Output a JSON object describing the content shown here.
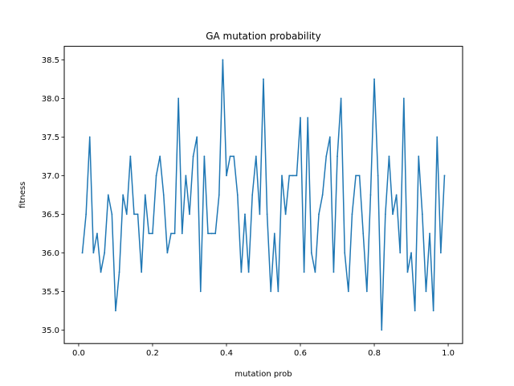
{
  "chart_data": {
    "type": "line",
    "title": "GA mutation probability",
    "xlabel": "mutation prob",
    "ylabel": "fitness",
    "xlim": [
      -0.039,
      1.039
    ],
    "ylim": [
      34.825,
      38.675
    ],
    "x_ticks": [
      0.0,
      0.2,
      0.4,
      0.6,
      0.8,
      1.0
    ],
    "x_tick_labels": [
      "0.0",
      "0.2",
      "0.4",
      "0.6",
      "0.8",
      "1.0"
    ],
    "y_ticks": [
      35.0,
      35.5,
      36.0,
      36.5,
      37.0,
      37.5,
      38.0,
      38.5
    ],
    "y_tick_labels": [
      "35.0",
      "35.5",
      "36.0",
      "36.5",
      "37.0",
      "37.5",
      "38.0",
      "38.5"
    ],
    "grid": false,
    "series": [
      {
        "color": "#1f77b4",
        "x": [
          0.01,
          0.02,
          0.03,
          0.04,
          0.05,
          0.06,
          0.07,
          0.08,
          0.09,
          0.1,
          0.11,
          0.12,
          0.13,
          0.14,
          0.15,
          0.16,
          0.17,
          0.18,
          0.19,
          0.2,
          0.21,
          0.22,
          0.23,
          0.24,
          0.25,
          0.26,
          0.27,
          0.28,
          0.29,
          0.3,
          0.31,
          0.32,
          0.33,
          0.34,
          0.35,
          0.36,
          0.37,
          0.38,
          0.39,
          0.4,
          0.41,
          0.42,
          0.43,
          0.44,
          0.45,
          0.46,
          0.47,
          0.48,
          0.49,
          0.5,
          0.51,
          0.52,
          0.53,
          0.54,
          0.55,
          0.56,
          0.57,
          0.58,
          0.59,
          0.6,
          0.61,
          0.62,
          0.63,
          0.64,
          0.65,
          0.66,
          0.67,
          0.68,
          0.69,
          0.7,
          0.71,
          0.72,
          0.73,
          0.74,
          0.75,
          0.76,
          0.77,
          0.78,
          0.79,
          0.8,
          0.81,
          0.82,
          0.83,
          0.84,
          0.85,
          0.86,
          0.87,
          0.88,
          0.89,
          0.9,
          0.91,
          0.92,
          0.93,
          0.94,
          0.95,
          0.96,
          0.97,
          0.98,
          0.99
        ],
        "y": [
          36.0,
          36.5,
          37.5,
          36.0,
          36.25,
          35.75,
          36.0,
          36.75,
          36.5,
          35.25,
          35.75,
          36.75,
          36.5,
          37.25,
          36.5,
          36.5,
          35.75,
          36.75,
          36.25,
          36.25,
          37.0,
          37.25,
          36.75,
          36.0,
          36.25,
          36.25,
          38.0,
          36.25,
          37.0,
          36.5,
          37.25,
          37.5,
          35.5,
          37.25,
          36.25,
          36.25,
          36.25,
          36.75,
          38.5,
          37.0,
          37.25,
          37.25,
          36.75,
          35.75,
          36.5,
          35.75,
          36.75,
          37.25,
          36.5,
          38.25,
          36.5,
          35.5,
          36.25,
          35.5,
          37.0,
          36.5,
          37.0,
          37.0,
          37.0,
          37.75,
          35.75,
          37.75,
          36.0,
          35.75,
          36.5,
          36.75,
          37.25,
          37.5,
          35.75,
          37.25,
          38.0,
          36.0,
          35.5,
          36.5,
          37.0,
          37.0,
          36.25,
          35.5,
          36.75,
          38.25,
          37.0,
          35.0,
          36.5,
          37.25,
          36.5,
          36.75,
          36.0,
          38.0,
          35.75,
          36.0,
          35.25,
          37.25,
          36.5,
          35.5,
          36.25,
          35.25,
          37.5,
          36.0,
          37.0
        ]
      }
    ]
  }
}
